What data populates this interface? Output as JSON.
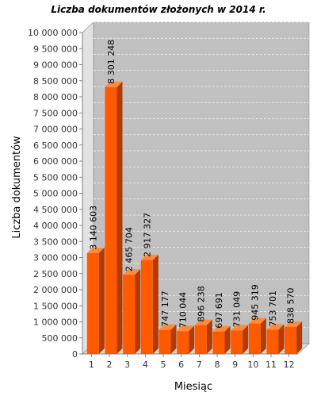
{
  "chart_data": {
    "type": "bar",
    "title": "Liczba dokumentów złożonych w 2014 r.",
    "xlabel": "Miesiąc",
    "ylabel": "Liczba dokumentów",
    "categories": [
      "1",
      "2",
      "3",
      "4",
      "5",
      "6",
      "7",
      "8",
      "9",
      "10",
      "11",
      "12"
    ],
    "values": [
      3140603,
      8301248,
      2465704,
      2917327,
      747177,
      710044,
      896238,
      697691,
      731049,
      945319,
      753701,
      838570
    ],
    "value_labels": [
      "3 140 603",
      "8 301 248",
      "2 465 704",
      "2 917 327",
      "747 177",
      "710 044",
      "896 238",
      "697 691",
      "731 049",
      "945 319",
      "753 701",
      "838 570"
    ],
    "ylim": [
      0,
      10000000
    ],
    "yticks": [
      0,
      500000,
      1000000,
      1500000,
      2000000,
      2500000,
      3000000,
      3500000,
      4000000,
      4500000,
      5000000,
      5500000,
      6000000,
      6500000,
      7000000,
      7500000,
      8000000,
      8500000,
      9000000,
      9500000,
      10000000
    ],
    "ytick_labels": [
      "0",
      "500 000",
      "1 000 000",
      "1 500 000",
      "2 000 000",
      "2 500 000",
      "3 000 000",
      "3 500 000",
      "4 000 000",
      "4 500 000",
      "5 000 000",
      "5 500 000",
      "6 000 000",
      "6 500 000",
      "7 000 000",
      "7 500 000",
      "8 000 000",
      "8 500 000",
      "9 000 000",
      "9 500 000",
      "10 000 000"
    ],
    "grid": true,
    "style": "3d",
    "colors": {
      "bar_front": "#ff5a00",
      "bar_side": "#b33a00",
      "bar_top": "#ff8a3d",
      "plot_back": "#c0c0c0",
      "plot_wall": "#e2e2e2",
      "grid": "#f2f2f2"
    }
  }
}
